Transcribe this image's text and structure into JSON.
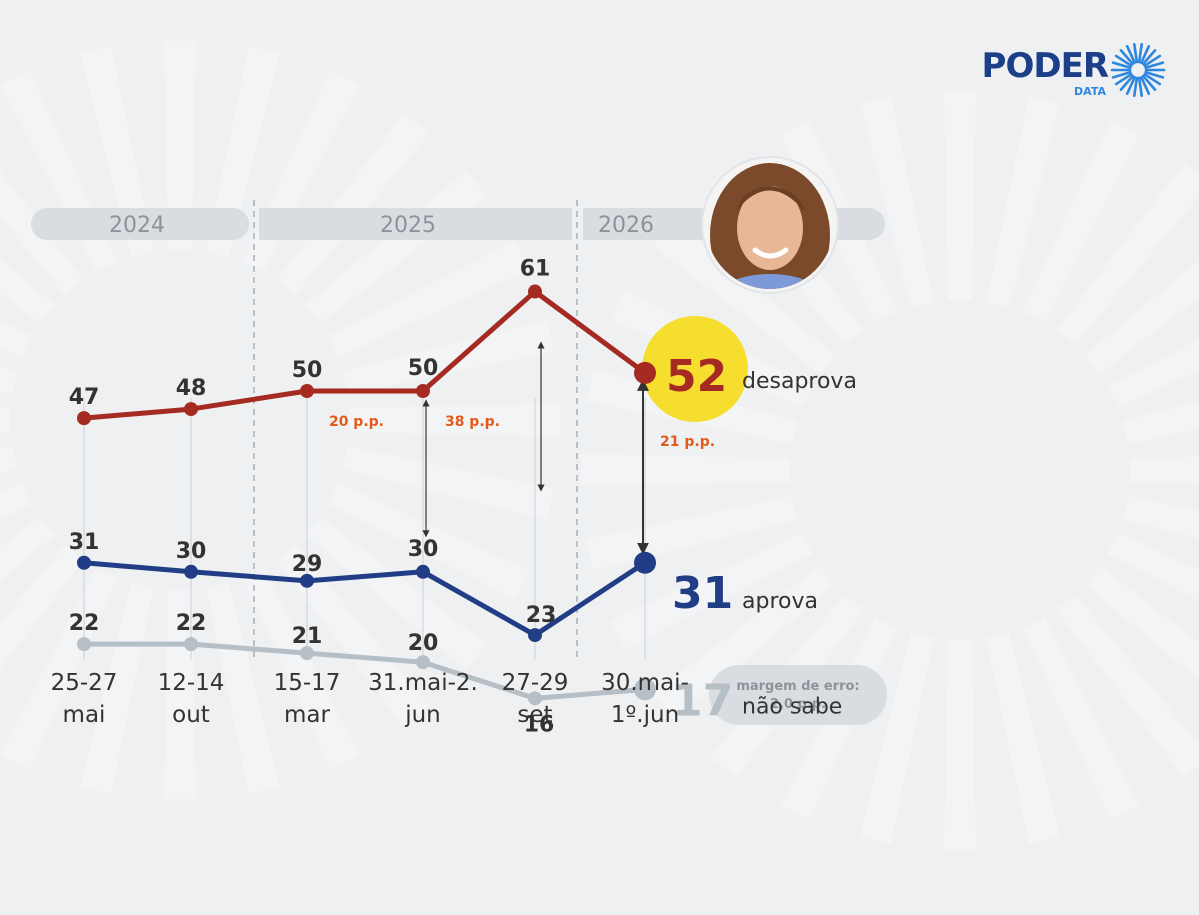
{
  "brand": {
    "name": "PODER",
    "sub": "DATA",
    "color": "#1c3f8a",
    "accent": "#2e86de"
  },
  "portrait": {
    "icon": "person-photo"
  },
  "year_bands": [
    "2024",
    "2025",
    "2026"
  ],
  "margin_note": {
    "line1": "margem de erro:",
    "line2": "2,0 p.p."
  },
  "colors": {
    "desaprova": "#a52a22",
    "aprova": "#213d85",
    "nao_sabe": "#b6bfc6",
    "highlight": "#f6de2e",
    "gap": "#e35b1c",
    "text": "#333333"
  },
  "chart_data": {
    "type": "line",
    "categories": [
      "25-27 mai",
      "12-14 out",
      "15-17 mar",
      "31.mai-2. jun",
      "27-29 set",
      "30.mai- 1º.jun"
    ],
    "category_lines": [
      [
        "25-27",
        "mai"
      ],
      [
        "12-14",
        "out"
      ],
      [
        "15-17",
        "mar"
      ],
      [
        "31.mai-2.",
        "jun"
      ],
      [
        "27-29",
        "set"
      ],
      [
        "30.mai-",
        "1º.jun"
      ]
    ],
    "ylim": [
      0,
      70
    ],
    "series": [
      {
        "key": "desaprova",
        "name": "desaprova",
        "values": [
          47,
          48,
          50,
          50,
          61,
          52
        ]
      },
      {
        "key": "aprova",
        "name": "aprova",
        "values": [
          31,
          30,
          29,
          30,
          23,
          31
        ]
      },
      {
        "key": "nao_sabe",
        "name": "não sabe",
        "values": [
          22,
          22,
          21,
          20,
          16,
          17
        ]
      }
    ],
    "gaps": [
      {
        "label": "20 p.p.",
        "index": 3
      },
      {
        "label": "38 p.p.",
        "index": 4
      },
      {
        "label": "21 p.p.",
        "index": 5
      }
    ]
  }
}
